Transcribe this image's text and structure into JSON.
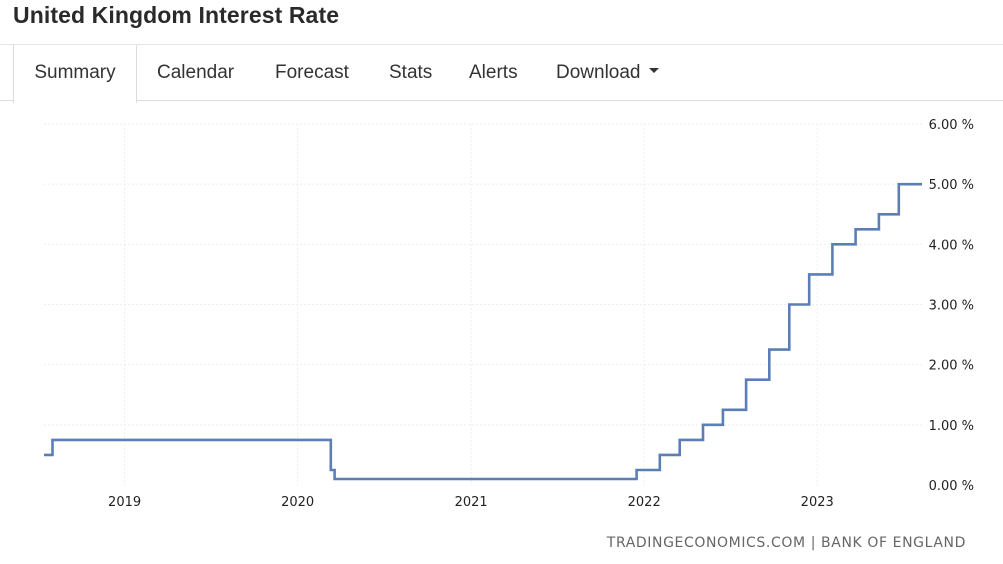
{
  "page": {
    "title": "United Kingdom Interest Rate"
  },
  "tabs": [
    {
      "label": "Summary",
      "active": true
    },
    {
      "label": "Calendar"
    },
    {
      "label": "Forecast"
    },
    {
      "label": "Stats"
    },
    {
      "label": "Alerts"
    },
    {
      "label": "Download",
      "has_dropdown": true
    }
  ],
  "source_text": "TRADINGECONOMICS.COM | BANK OF ENGLAND",
  "colors": {
    "line": "#5b7fb5",
    "grid": "#eeeeee"
  },
  "chart_data": {
    "type": "line",
    "step": true,
    "title": "",
    "xlabel": "",
    "ylabel": "",
    "grid": true,
    "y_tick_labels": [
      "6.00 %",
      "5.00 %",
      "4.00 %",
      "3.00 %",
      "2.00 %",
      "1.00 %",
      "0.00 %"
    ],
    "y_ticks": [
      6,
      5,
      4,
      3,
      2,
      1,
      0
    ],
    "ylim": [
      0,
      6
    ],
    "x_tick_labels": [
      "2019",
      "2020",
      "2021",
      "2022",
      "2023"
    ],
    "x_ticks": [
      "2019-01-01",
      "2020-01-01",
      "2021-01-01",
      "2022-01-01",
      "2023-01-01"
    ],
    "xlim": [
      "2018-07-15",
      "2023-08-10"
    ],
    "series": [
      {
        "values": [
          {
            "x": "2018-07-15",
            "y": 0.5
          },
          {
            "x": "2018-08-02",
            "y": 0.75
          },
          {
            "x": "2020-03-11",
            "y": 0.25
          },
          {
            "x": "2020-03-19",
            "y": 0.1
          },
          {
            "x": "2021-12-16",
            "y": 0.25
          },
          {
            "x": "2022-02-03",
            "y": 0.5
          },
          {
            "x": "2022-03-17",
            "y": 0.75
          },
          {
            "x": "2022-05-05",
            "y": 1.0
          },
          {
            "x": "2022-06-16",
            "y": 1.25
          },
          {
            "x": "2022-08-04",
            "y": 1.75
          },
          {
            "x": "2022-09-22",
            "y": 2.25
          },
          {
            "x": "2022-11-03",
            "y": 3.0
          },
          {
            "x": "2022-12-15",
            "y": 3.5
          },
          {
            "x": "2023-02-02",
            "y": 4.0
          },
          {
            "x": "2023-03-23",
            "y": 4.25
          },
          {
            "x": "2023-05-11",
            "y": 4.5
          },
          {
            "x": "2023-06-22",
            "y": 5.0
          }
        ]
      }
    ]
  }
}
